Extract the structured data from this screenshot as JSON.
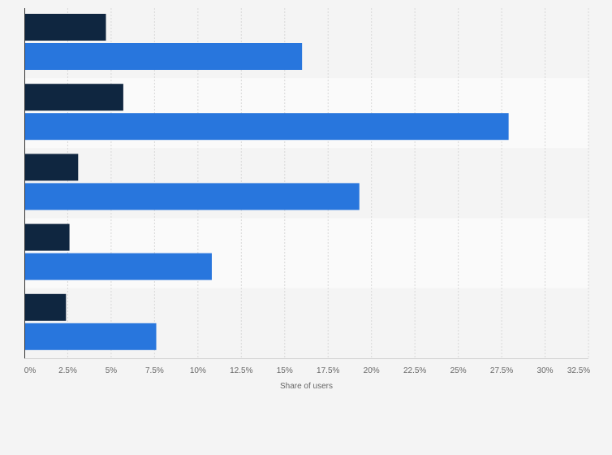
{
  "chart_data": {
    "type": "bar",
    "orientation": "horizontal",
    "categories": [
      "",
      "",
      "",
      "",
      ""
    ],
    "series": [
      {
        "color": "#0f2640",
        "values": [
          4.7,
          5.7,
          3.1,
          2.6,
          2.4
        ]
      },
      {
        "color": "#2876dd",
        "values": [
          16.0,
          27.9,
          19.3,
          10.8,
          7.6
        ]
      }
    ],
    "xlabel": "Share of users",
    "ylabel": "",
    "xlim": [
      0,
      32.5
    ],
    "xticks": [
      "0%",
      "2.5%",
      "5%",
      "7.5%",
      "10%",
      "12.5%",
      "15%",
      "17.5%",
      "20%",
      "22.5%",
      "25%",
      "27.5%",
      "30%",
      "32.5%"
    ],
    "grid": true,
    "legend": "none"
  }
}
